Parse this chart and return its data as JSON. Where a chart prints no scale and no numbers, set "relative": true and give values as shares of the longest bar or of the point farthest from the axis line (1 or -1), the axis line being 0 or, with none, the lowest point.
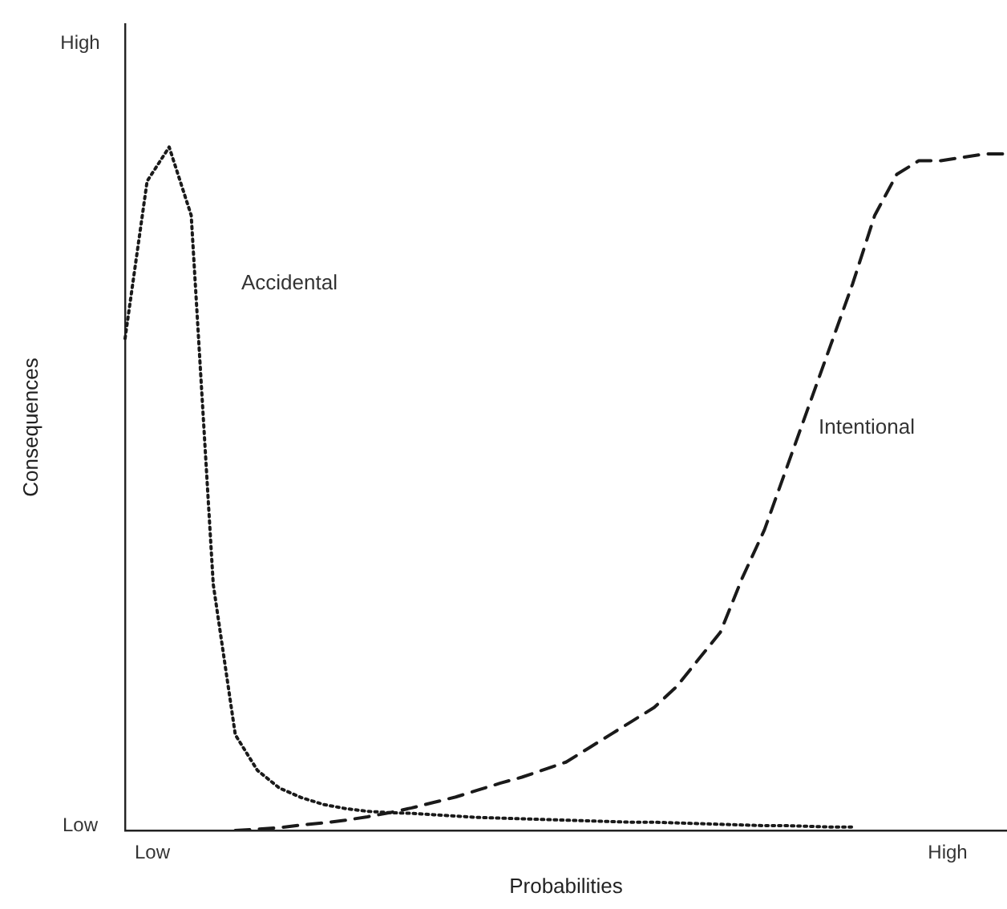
{
  "chart_data": {
    "type": "line",
    "xlabel": "Probabilities",
    "ylabel": "Consequences",
    "relative": true,
    "annotations": [
      "Low",
      "High",
      "Low",
      "High"
    ],
    "grid": false,
    "legend": false,
    "marker": "none",
    "categories": [
      null,
      null,
      null,
      null,
      null,
      null,
      null,
      null,
      null,
      null,
      null,
      null,
      null,
      null,
      null,
      null,
      null,
      null,
      null,
      null,
      null,
      null,
      null,
      null,
      null,
      null,
      null,
      null,
      null,
      null,
      null,
      null,
      null,
      null,
      null,
      null,
      null,
      null,
      null,
      null,
      null
    ],
    "series": [
      {
        "name": "Accidental",
        "color": "#1a1a1a",
        "line_style": "dotted",
        "values": [
          0.72,
          0.95,
          1,
          0.9,
          0.36,
          0.14,
          0.088,
          0.062,
          0.048,
          0.038,
          0.032,
          0.028,
          0.026,
          0.025,
          0.023,
          0.021,
          0.019,
          0.018,
          0.017,
          0.016,
          0.015,
          0.014,
          0.013,
          0.012,
          0.012,
          0.011,
          0.01,
          0.009,
          0.008,
          0.007,
          0.007,
          0.006,
          0.005,
          0.005,
          null,
          null,
          null,
          null,
          null,
          null,
          null
        ]
      },
      {
        "name": "Intentional",
        "color": "#1a1a1a",
        "line_style": "dashed",
        "values": [
          null,
          null,
          null,
          null,
          null,
          0,
          0.002,
          0.004,
          0.008,
          0.011,
          0.015,
          0.02,
          0.026,
          0.033,
          0.041,
          0.049,
          0.059,
          0.069,
          0.078,
          0.089,
          0.1,
          0.12,
          0.14,
          0.16,
          0.18,
          0.21,
          0.25,
          0.29,
          0.37,
          0.44,
          0.53,
          0.62,
          0.71,
          0.8,
          0.9,
          0.96,
          0.98,
          0.98,
          0.985,
          0.99,
          0.99
        ]
      }
    ]
  }
}
